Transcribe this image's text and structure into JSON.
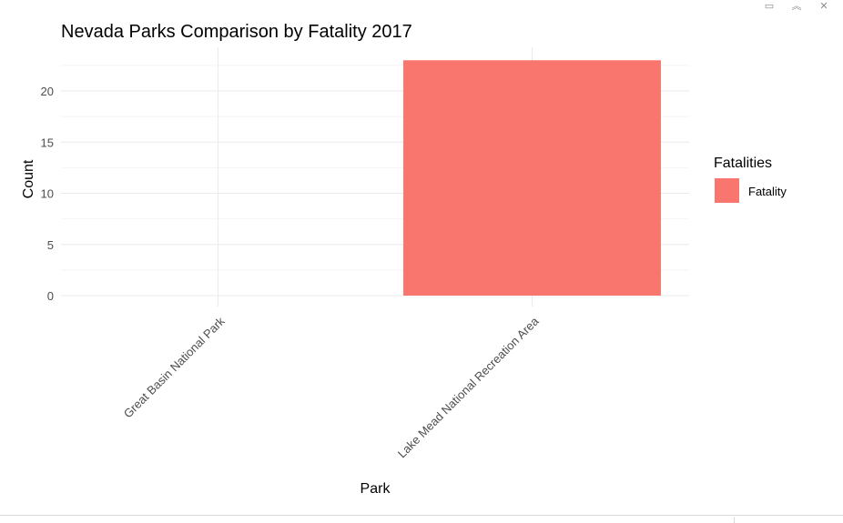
{
  "window": {
    "controls": [
      {
        "name": "minimize-pane-icon",
        "glyph": "▭"
      },
      {
        "name": "collapse-icon",
        "glyph": "︽"
      },
      {
        "name": "close-icon",
        "glyph": "✕"
      }
    ]
  },
  "chart_data": {
    "type": "bar",
    "title": "Nevada Parks Comparison by Fatality 2017",
    "xlabel": "Park",
    "ylabel": "Count",
    "categories": [
      "Great Basin National Park",
      "Lake Mead National Recreation Area"
    ],
    "series": [
      {
        "name": "Fatality",
        "values": [
          0,
          23
        ],
        "color": "#f8766d"
      }
    ],
    "ylim": [
      -1,
      24
    ],
    "yticks": [
      0,
      5,
      10,
      15,
      20
    ],
    "grid": true,
    "legend": {
      "title": "Fatalities",
      "position": "right"
    }
  }
}
